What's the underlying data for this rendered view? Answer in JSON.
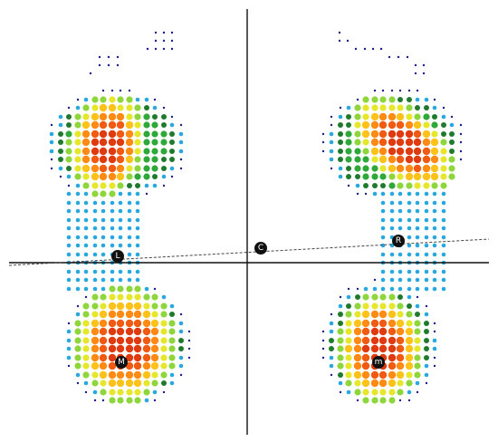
{
  "palette": {
    "background": "#ffffff",
    "axis": "#111111",
    "dash_line": "#444444",
    "marker_fill": "#111111",
    "marker_text": "#ffffff",
    "pressure_scale": [
      "#1c1c8c",
      "#2255cc",
      "#29a8e0",
      "#45d4d0",
      "#1f7a2e",
      "#2fa83a",
      "#8ed63c",
      "#e6e62a",
      "#ffc21a",
      "#ff8a14",
      "#f05a12",
      "#e03a10"
    ]
  },
  "markers": [
    {
      "id": "left-foot",
      "label": "L"
    },
    {
      "id": "center",
      "label": "C"
    },
    {
      "id": "right-foot",
      "label": "R"
    },
    {
      "id": "left-heel",
      "label": "M"
    },
    {
      "id": "right-heel",
      "label": "m"
    }
  ]
}
